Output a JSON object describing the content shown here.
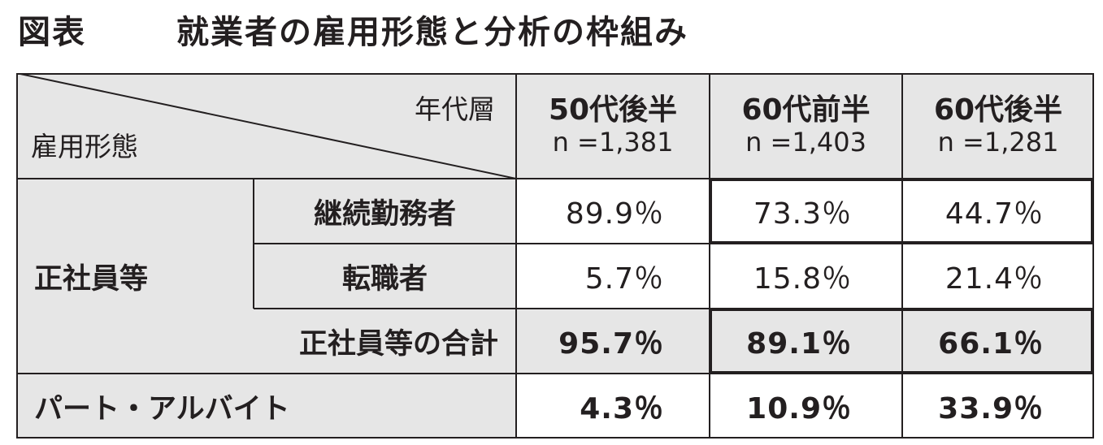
{
  "title": {
    "fig": "図表",
    "text": "就業者の雇用形態と分析の枠組み"
  },
  "header": {
    "corner_top": "年代層",
    "corner_bottom": "雇用形態",
    "columns": [
      {
        "label": "50代後半",
        "n": "n =1,381"
      },
      {
        "label": "60代前半",
        "n": "n =1,403"
      },
      {
        "label": "60代後半",
        "n": "n =1,281"
      }
    ]
  },
  "group": {
    "label": "正社員等"
  },
  "rows": [
    {
      "label": "継続勤務者",
      "values": [
        "89.9％",
        "73.3％",
        "44.7％"
      ]
    },
    {
      "label": "転職者",
      "values": [
        "5.7％",
        "15.8％",
        "21.4％"
      ]
    },
    {
      "label": "正社員等の合計",
      "values": [
        "95.7％",
        "89.1％",
        "66.1％"
      ]
    },
    {
      "label": "パート・アルバイト",
      "values": [
        "4.3％",
        "10.9％",
        "33.9％"
      ]
    }
  ]
}
